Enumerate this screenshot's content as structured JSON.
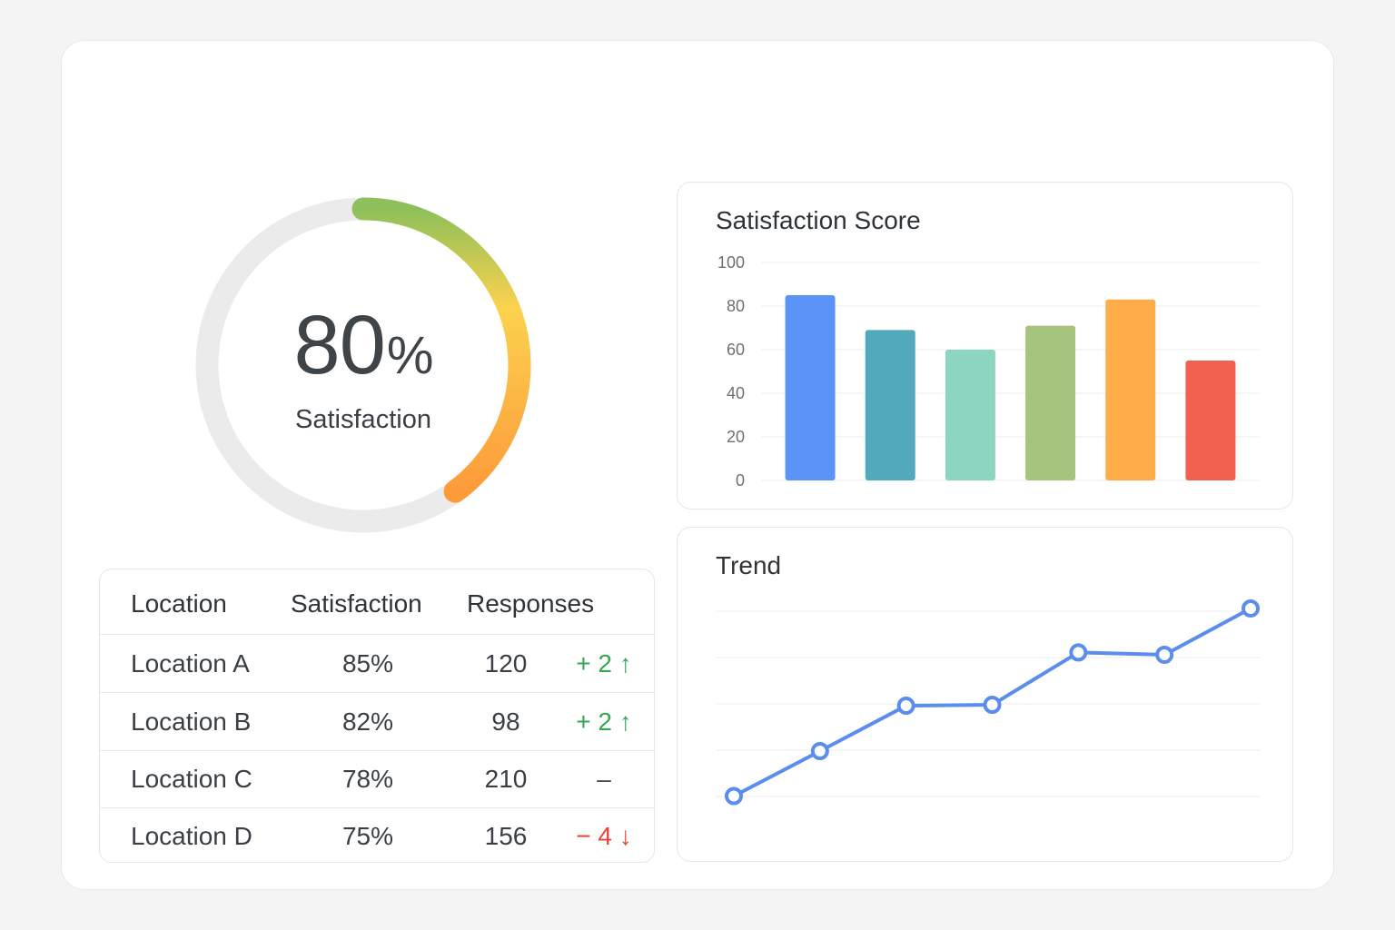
{
  "gauge": {
    "value_number": "80",
    "value_unit": "%",
    "label": "Satisfaction",
    "fraction": 0.4
  },
  "table": {
    "headers": [
      "Location",
      "Satisfaction",
      "Responses"
    ],
    "rows": [
      {
        "location": "Location A",
        "satisfaction": "85%",
        "responses": "120",
        "change": "+ 2 ↑",
        "trend": "up"
      },
      {
        "location": "Location B",
        "satisfaction": "82%",
        "responses": "98",
        "change": "+ 2 ↑",
        "trend": "up"
      },
      {
        "location": "Location C",
        "satisfaction": "78%",
        "responses": "210",
        "change": "–",
        "trend": "neutral"
      },
      {
        "location": "Location D",
        "satisfaction": "75%",
        "responses": "156",
        "change": "− 4 ↓",
        "trend": "down"
      }
    ]
  },
  "chart_data": [
    {
      "type": "bar",
      "title": "Satisfaction Score",
      "ylim": [
        0,
        100
      ],
      "yticks": [
        "0",
        "20",
        "40",
        "60",
        "80",
        "100"
      ],
      "values": [
        85,
        69,
        60,
        71,
        83,
        55
      ],
      "colors": [
        "#5b93f7",
        "#51a9bb",
        "#8cd5bf",
        "#a6c47d",
        "#ffad4a",
        "#f2604f"
      ],
      "grid": true
    },
    {
      "type": "line",
      "title": "Trend",
      "values": [
        0,
        0.97,
        1.95,
        1.97,
        3.1,
        3.05,
        4.05
      ],
      "ylim": [
        -0.5,
        4.5
      ],
      "color": "#5b8def",
      "grid": true
    }
  ],
  "colors": {
    "gauge_track": "#ebebec",
    "gauge_start": "#8dc05a",
    "gauge_mid": "#fcd24e",
    "gauge_end": "#fd9a3a",
    "up": "#34a853",
    "down": "#ea4335"
  }
}
